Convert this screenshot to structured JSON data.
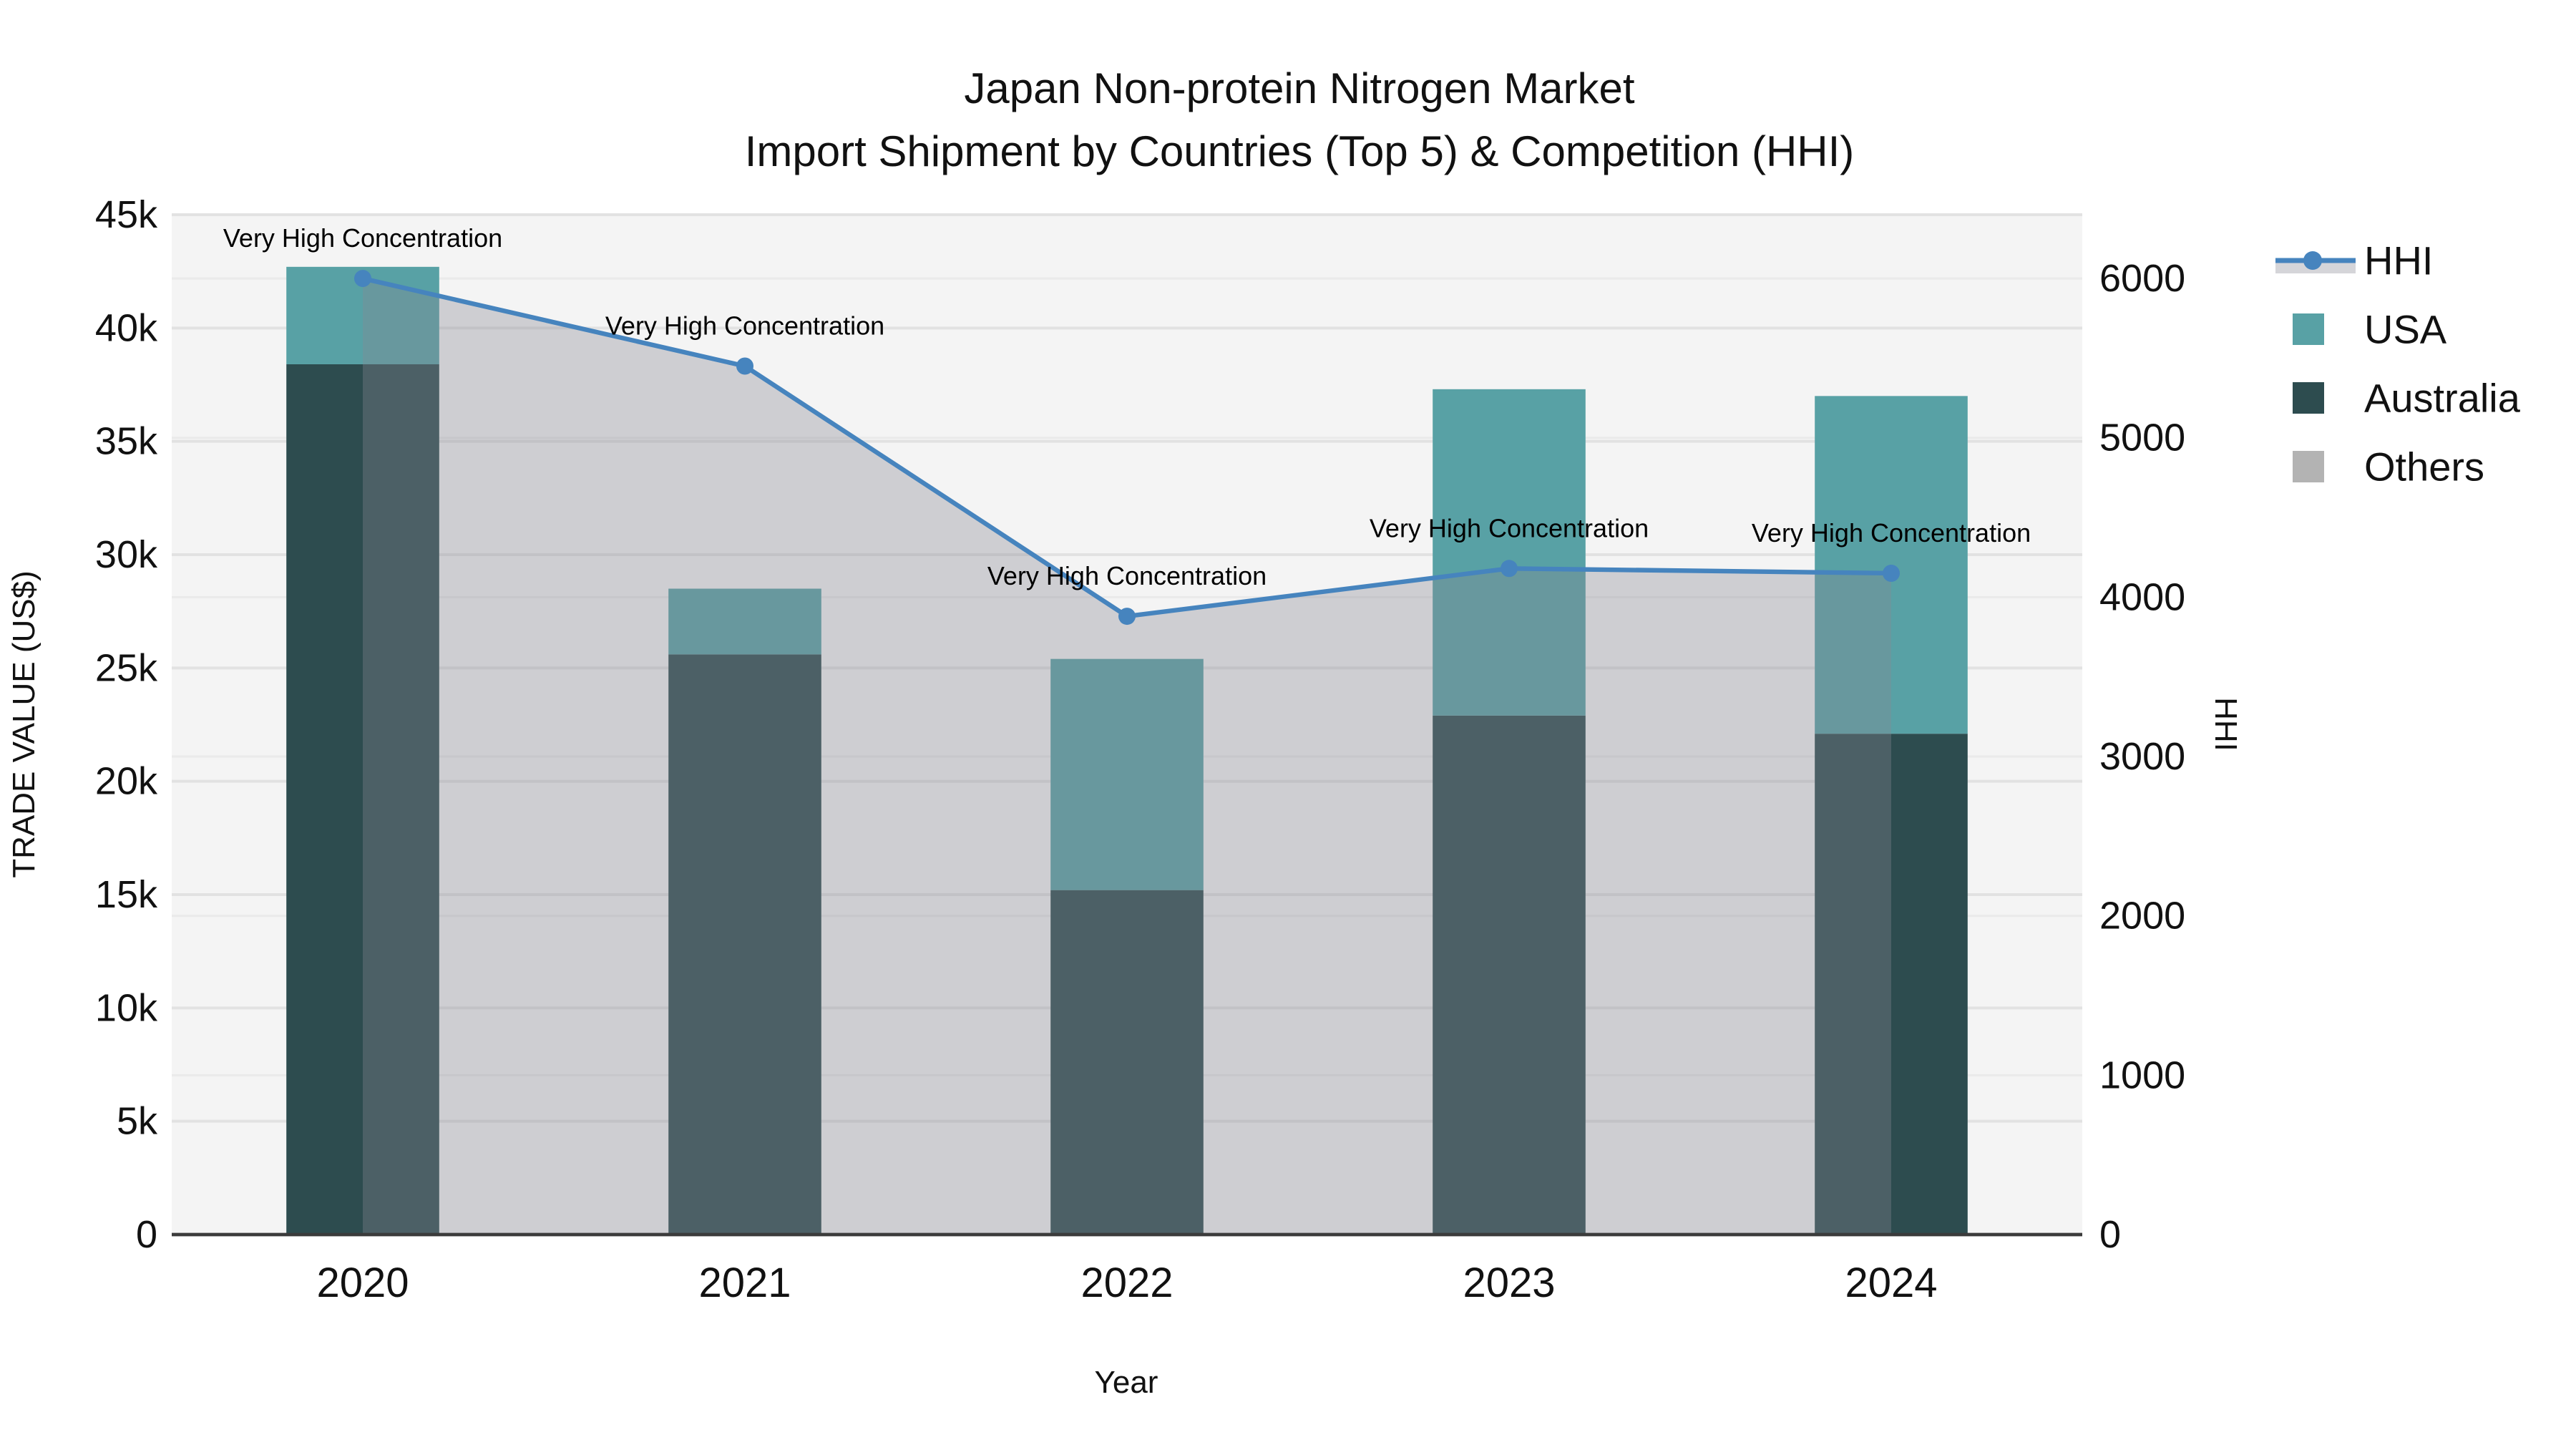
{
  "title": {
    "line1": "Japan Non-protein Nitrogen Market",
    "line2": "Import Shipment by Countries (Top 5) & Competition (HHI)"
  },
  "axes": {
    "x": {
      "title": "Year",
      "categories": [
        "2020",
        "2021",
        "2022",
        "2023",
        "2024"
      ]
    },
    "y_left": {
      "title": "TRADE VALUE (US$)",
      "min": 0,
      "max": 45000,
      "tick_step": 5000,
      "tick_labels": [
        "0",
        "5k",
        "10k",
        "15k",
        "20k",
        "25k",
        "30k",
        "35k",
        "40k",
        "45k"
      ]
    },
    "y_right": {
      "title": "HHI",
      "min": 0,
      "max": 6400,
      "tick_step": 1000,
      "tick_labels": [
        "0",
        "1000",
        "2000",
        "3000",
        "4000",
        "5000",
        "6000"
      ]
    }
  },
  "legend": {
    "entries": [
      {
        "label": "HHI",
        "swatch": "line",
        "color": "#4684be",
        "band_color": "rgba(136,135,146,0.35)"
      },
      {
        "label": "USA",
        "swatch": "square",
        "color": "#58a1a5"
      },
      {
        "label": "Australia",
        "swatch": "square",
        "color": "#2d4c4f"
      },
      {
        "label": "Others",
        "swatch": "square",
        "color": "#b3b3b3"
      }
    ]
  },
  "chart_data": {
    "type": "combo-stacked-bar-line",
    "categories": [
      "2020",
      "2021",
      "2022",
      "2023",
      "2024"
    ],
    "xlabel": "Year",
    "ylabel_left": "TRADE VALUE (US$)",
    "ylabel_right": "HHI",
    "ylim_left": [
      0,
      45000
    ],
    "ylim_right": [
      0,
      6400
    ],
    "grid": true,
    "legend_position": "right",
    "bar_series": [
      {
        "name": "Australia",
        "color": "#2d4c4f",
        "values": [
          38400,
          25600,
          15200,
          22900,
          22100
        ]
      },
      {
        "name": "USA",
        "color": "#58a1a5",
        "values": [
          4300,
          2900,
          10200,
          14400,
          14900
        ]
      },
      {
        "name": "Others",
        "color": "#b3b3b3",
        "values": [
          0,
          0,
          0,
          0,
          0
        ]
      }
    ],
    "bar_totals": [
      42700,
      28500,
      25400,
      37300,
      37000
    ],
    "line_series": {
      "name": "HHI",
      "axis": "right",
      "color": "#4684be",
      "fill_color": "rgba(136,135,146,0.35)",
      "values": [
        6000,
        5450,
        3880,
        4180,
        4150
      ]
    },
    "annotations": [
      {
        "text": "Very High Concentration",
        "category": "2020"
      },
      {
        "text": "Very High Concentration",
        "category": "2021"
      },
      {
        "text": "Very High Concentration",
        "category": "2022"
      },
      {
        "text": "Very High Concentration",
        "category": "2023"
      },
      {
        "text": "Very High Concentration",
        "category": "2024"
      }
    ]
  },
  "colors": {
    "plot_bg": "#f4f4f4",
    "grid_major": "#e2e2e2",
    "grid_minor": "#eaeaea",
    "axis_line": "#3b3b3b",
    "text": "#111111"
  }
}
